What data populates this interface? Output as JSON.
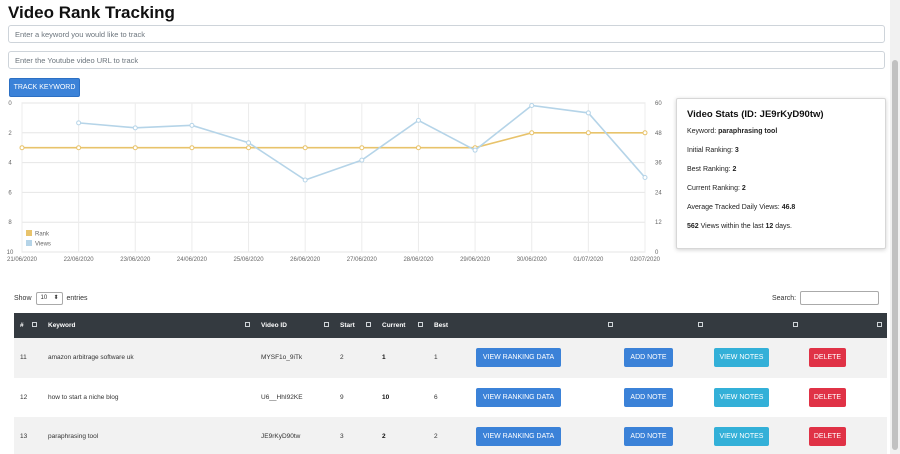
{
  "title": "Video Rank Tracking",
  "keyword_input": {
    "placeholder": "Enter a keyword you would like to track"
  },
  "url_input": {
    "placeholder": "Enter the Youtube video URL to track"
  },
  "track_button": "TRACK KEYWORD",
  "colors": {
    "rank": "#e8c36b",
    "views": "#b5d4e8",
    "primary": "#3b82d8",
    "info": "#33b0d8",
    "danger": "#e03246",
    "header": "#343a40"
  },
  "chart_data": {
    "type": "line",
    "categories": [
      "21/06/2020",
      "22/06/2020",
      "23/06/2020",
      "24/06/2020",
      "25/06/2020",
      "26/06/2020",
      "27/06/2020",
      "28/06/2020",
      "29/06/2020",
      "30/06/2020",
      "01/07/2020",
      "02/07/2020"
    ],
    "series": [
      {
        "name": "Rank",
        "axis": "left",
        "values": [
          3,
          3,
          3,
          3,
          3,
          3,
          3,
          3,
          3,
          2,
          2,
          2
        ]
      },
      {
        "name": "Views",
        "axis": "right",
        "values": [
          null,
          52,
          50,
          51,
          44,
          29,
          37,
          53,
          41,
          59,
          56,
          30
        ]
      }
    ],
    "y_left": {
      "ticks": [
        "0",
        "2",
        "4",
        "6",
        "8",
        "10"
      ],
      "range": [
        0,
        10
      ],
      "reversed": true
    },
    "y_right": {
      "ticks": [
        "60",
        "48",
        "36",
        "24",
        "12",
        "0"
      ],
      "range": [
        0,
        60
      ]
    },
    "legend_position": "bottom-left",
    "grid": true
  },
  "stats": {
    "heading": "Video Stats (ID: JE9rKyD90tw)",
    "keyword_label": "Keyword:",
    "keyword_value": "paraphrasing tool",
    "initial_label": "Initial Ranking:",
    "initial_value": "3",
    "best_label": "Best Ranking:",
    "best_value": "2",
    "current_label": "Current Ranking:",
    "current_value": "2",
    "avg_label": "Average Tracked Daily Views:",
    "avg_value": "46.8",
    "views_total": "562",
    "views_mid": "Views within the last",
    "views_days": "12",
    "views_end": "days."
  },
  "table_controls": {
    "show": "Show",
    "length": "10",
    "entries": "entries",
    "search": "Search:"
  },
  "table": {
    "headers": [
      "#",
      "Keyword",
      "Video ID",
      "Start",
      "Current",
      "Best"
    ],
    "rows": [
      {
        "id": "11",
        "keyword": "amazon arbitrage software uk",
        "video_id": "MYSF1o_9iTk",
        "start": "2",
        "current": "1",
        "best": "1"
      },
      {
        "id": "12",
        "keyword": "how to start a niche blog",
        "video_id": "U6__HhI92KE",
        "start": "9",
        "current": "10",
        "best": "6"
      },
      {
        "id": "13",
        "keyword": "paraphrasing tool",
        "video_id": "JE9rKyD90tw",
        "start": "3",
        "current": "2",
        "best": "2"
      }
    ],
    "actions": {
      "view": "VIEW RANKING DATA",
      "add": "ADD NOTE",
      "notes": "VIEW NOTES",
      "delete": "DELETE"
    }
  }
}
